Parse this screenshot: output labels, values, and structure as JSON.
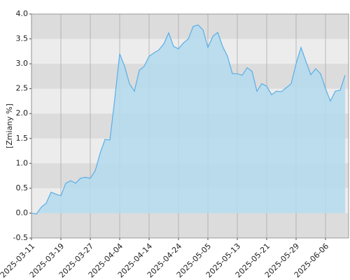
{
  "chart_data": {
    "type": "area",
    "ylabel": "[Zmiany %]",
    "categories": [
      "2025-03-11",
      null,
      null,
      null,
      null,
      null,
      "2025-03-19",
      null,
      null,
      null,
      null,
      null,
      "2025-03-27",
      null,
      null,
      null,
      null,
      null,
      "2025-04-04",
      null,
      null,
      null,
      null,
      null,
      "2025-04-14",
      null,
      null,
      null,
      null,
      null,
      "2025-04-24",
      null,
      null,
      null,
      null,
      null,
      "2025-05-05",
      null,
      null,
      null,
      null,
      null,
      "2025-05-13",
      null,
      null,
      null,
      null,
      null,
      "2025-05-21",
      null,
      null,
      null,
      null,
      null,
      "2025-05-29",
      null,
      null,
      null,
      null,
      null,
      "2025-06-06",
      null,
      null,
      null,
      null
    ],
    "values": [
      0.0,
      -0.02,
      0.12,
      0.2,
      0.42,
      0.38,
      0.35,
      0.6,
      0.65,
      0.6,
      0.7,
      0.72,
      0.7,
      0.85,
      1.2,
      1.48,
      1.47,
      2.3,
      3.2,
      2.95,
      2.6,
      2.45,
      2.87,
      2.95,
      3.15,
      3.22,
      3.28,
      3.4,
      3.62,
      3.35,
      3.3,
      3.42,
      3.5,
      3.75,
      3.78,
      3.68,
      3.33,
      3.55,
      3.63,
      3.35,
      3.15,
      2.8,
      2.8,
      2.77,
      2.92,
      2.85,
      2.45,
      2.6,
      2.55,
      2.38,
      2.45,
      2.44,
      2.52,
      2.6,
      3.0,
      3.33,
      3.05,
      2.78,
      2.9,
      2.8,
      2.5,
      2.25,
      2.45,
      2.47,
      2.77
    ],
    "color": "#5aaee6",
    "fill_color": "#b3dbee",
    "ylim": [
      -0.5,
      4.0
    ],
    "yticks": [
      -0.5,
      {
        "value": 0.0,
        "label": "0.0"
      },
      0.5,
      {
        "value": 1.0,
        "label": "1.0"
      },
      1.5,
      {
        "value": 2.0,
        "label": "2.0"
      },
      2.5,
      {
        "value": 3.0,
        "label": "3.0"
      },
      3.5,
      {
        "value": 4.0,
        "label": "4.0"
      }
    ],
    "grid": true
  }
}
